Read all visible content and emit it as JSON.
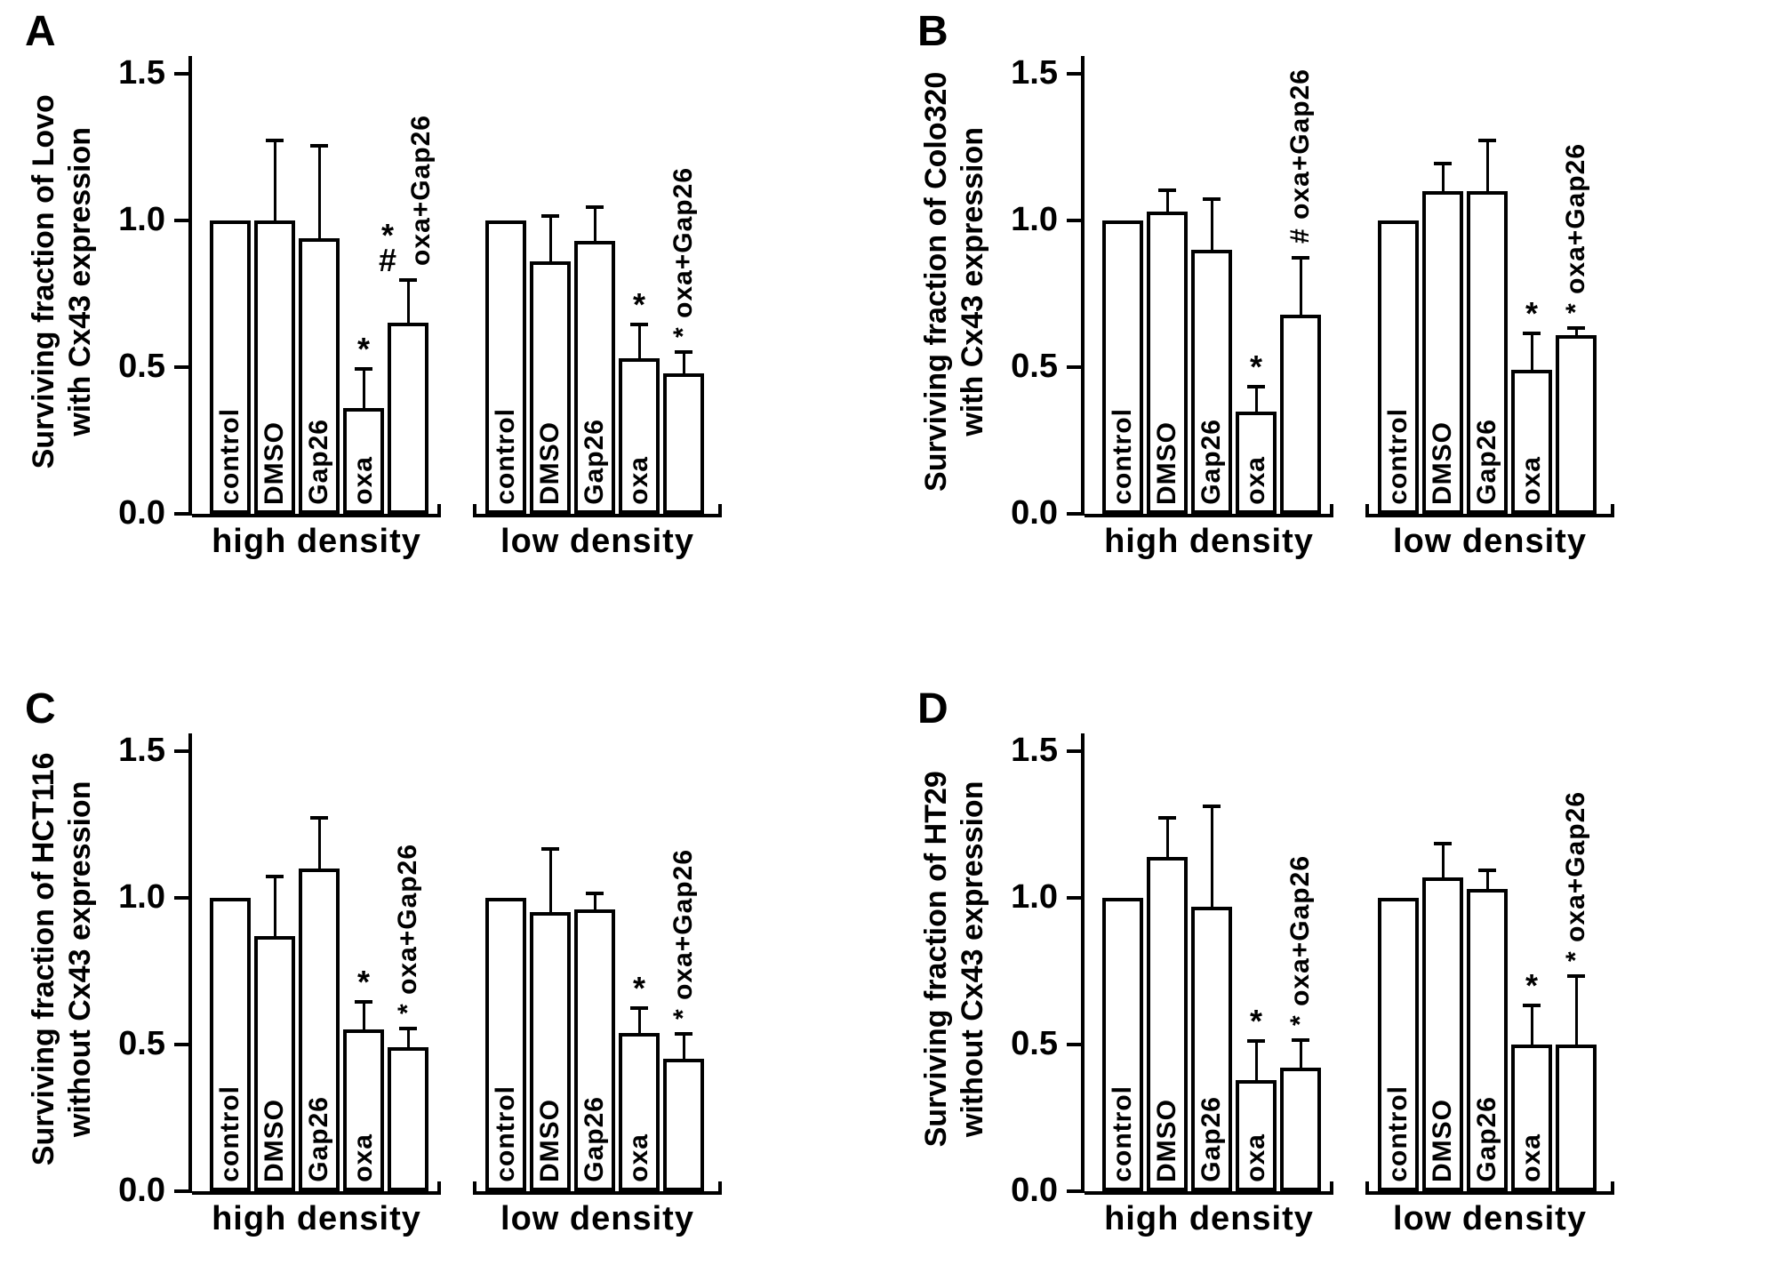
{
  "figure": {
    "background": "#ffffff",
    "ink": "#000000"
  },
  "chart_data": {
    "type": "bar",
    "ylim": [
      0,
      1.5
    ],
    "yticks": [
      "0.0",
      "0.5",
      "1.0",
      "1.5"
    ],
    "bar_fill": "#ffffff",
    "bar_edge": "#000000",
    "panels": [
      {
        "letter": "A",
        "ylabel_lines": [
          "Surviving fraction of Lovo",
          "with Cx43 expression"
        ],
        "groups": [
          {
            "label": "high density",
            "bars": [
              {
                "name": "control",
                "value": 1.0,
                "err": 0
              },
              {
                "name": "DMSO",
                "value": 1.0,
                "err": 0.28
              },
              {
                "name": "Gap26",
                "value": 0.94,
                "err": 0.32
              },
              {
                "name": "oxa",
                "value": 0.36,
                "err": 0.14,
                "marker": "*"
              },
              {
                "name": "oxa+Gap26",
                "value": 0.65,
                "err": 0.15,
                "marker": "*#",
                "top_label": "oxa+Gap26",
                "label_outside": true
              }
            ]
          },
          {
            "label": "low density",
            "bars": [
              {
                "name": "control",
                "value": 1.0,
                "err": 0
              },
              {
                "name": "DMSO",
                "value": 0.86,
                "err": 0.16
              },
              {
                "name": "Gap26",
                "value": 0.93,
                "err": 0.12
              },
              {
                "name": "oxa",
                "value": 0.53,
                "err": 0.12,
                "marker": "*"
              },
              {
                "name": "oxa+Gap26",
                "value": 0.48,
                "err": 0.08,
                "top_label": "* oxa+Gap26",
                "label_outside": true
              }
            ]
          }
        ]
      },
      {
        "letter": "B",
        "ylabel_lines": [
          "Surviving fraction of Colo320",
          "with Cx43 expression"
        ],
        "groups": [
          {
            "label": "high density",
            "bars": [
              {
                "name": "control",
                "value": 1.0,
                "err": 0
              },
              {
                "name": "DMSO",
                "value": 1.03,
                "err": 0.08
              },
              {
                "name": "Gap26",
                "value": 0.9,
                "err": 0.18
              },
              {
                "name": "oxa",
                "value": 0.35,
                "err": 0.09,
                "marker": "*"
              },
              {
                "name": "oxa+Gap26",
                "value": 0.68,
                "err": 0.2,
                "top_label": "# oxa+Gap26",
                "label_outside": true
              }
            ]
          },
          {
            "label": "low density",
            "bars": [
              {
                "name": "control",
                "value": 1.0,
                "err": 0
              },
              {
                "name": "DMSO",
                "value": 1.1,
                "err": 0.1
              },
              {
                "name": "Gap26",
                "value": 1.1,
                "err": 0.18
              },
              {
                "name": "oxa",
                "value": 0.49,
                "err": 0.13,
                "marker": "*"
              },
              {
                "name": "oxa+Gap26",
                "value": 0.61,
                "err": 0.03,
                "top_label": "* oxa+Gap26",
                "label_outside": true
              }
            ]
          }
        ]
      },
      {
        "letter": "C",
        "ylabel_lines": [
          "Surviving fraction of HCT116",
          "without Cx43 expression"
        ],
        "groups": [
          {
            "label": "high density",
            "bars": [
              {
                "name": "control",
                "value": 1.0,
                "err": 0
              },
              {
                "name": "DMSO",
                "value": 0.87,
                "err": 0.21
              },
              {
                "name": "Gap26",
                "value": 1.1,
                "err": 0.18
              },
              {
                "name": "oxa",
                "value": 0.55,
                "err": 0.1,
                "marker": "*"
              },
              {
                "name": "oxa+Gap26",
                "value": 0.49,
                "err": 0.07,
                "top_label": "* oxa+Gap26",
                "label_outside": true
              }
            ]
          },
          {
            "label": "low density",
            "bars": [
              {
                "name": "control",
                "value": 1.0,
                "err": 0
              },
              {
                "name": "DMSO",
                "value": 0.95,
                "err": 0.22
              },
              {
                "name": "Gap26",
                "value": 0.96,
                "err": 0.06
              },
              {
                "name": "oxa",
                "value": 0.54,
                "err": 0.09,
                "marker": "*"
              },
              {
                "name": "oxa+Gap26",
                "value": 0.45,
                "err": 0.09,
                "top_label": "* oxa+Gap26",
                "label_outside": true
              }
            ]
          }
        ]
      },
      {
        "letter": "D",
        "ylabel_lines": [
          "Surviving fraction of HT29",
          "without Cx43 expression"
        ],
        "groups": [
          {
            "label": "high density",
            "bars": [
              {
                "name": "control",
                "value": 1.0,
                "err": 0
              },
              {
                "name": "DMSO",
                "value": 1.14,
                "err": 0.14
              },
              {
                "name": "Gap26",
                "value": 0.97,
                "err": 0.35
              },
              {
                "name": "oxa",
                "value": 0.38,
                "err": 0.14,
                "marker": "*"
              },
              {
                "name": "oxa+Gap26",
                "value": 0.42,
                "err": 0.1,
                "top_label": "* oxa+Gap26",
                "label_outside": true
              }
            ]
          },
          {
            "label": "low density",
            "bars": [
              {
                "name": "control",
                "value": 1.0,
                "err": 0
              },
              {
                "name": "DMSO",
                "value": 1.07,
                "err": 0.12
              },
              {
                "name": "Gap26",
                "value": 1.03,
                "err": 0.07
              },
              {
                "name": "oxa",
                "value": 0.5,
                "err": 0.14,
                "marker": "*"
              },
              {
                "name": "oxa+Gap26",
                "value": 0.5,
                "err": 0.24,
                "top_label": "* oxa+Gap26",
                "label_outside": true
              }
            ]
          }
        ]
      }
    ]
  }
}
